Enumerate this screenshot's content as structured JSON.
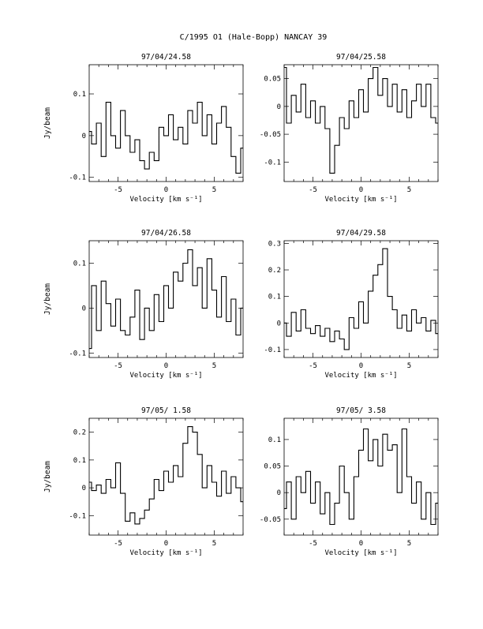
{
  "page": {
    "title": "C/1995 O1 (Hale-Bopp)   NANCAY    39"
  },
  "chart_data": [
    {
      "type": "line",
      "title": "97/04/24.58",
      "xlabel": "Velocity [km s⁻¹]",
      "ylabel": "Jy/beam",
      "xlim": [
        -8,
        8
      ],
      "ylim": [
        -0.11,
        0.17
      ],
      "xticks": [
        -5,
        0,
        5
      ],
      "yticks": [
        -0.1,
        0,
        0.1
      ],
      "ytick_labels": [
        "-0.1",
        "0",
        "0.1"
      ],
      "series": [
        {
          "x": [
            -8,
            -7.5,
            -7,
            -6.5,
            -6,
            -5.5,
            -5,
            -4.5,
            -4,
            -3.5,
            -3,
            -2.5,
            -2,
            -1.5,
            -1,
            -0.5,
            0,
            0.5,
            1,
            1.5,
            2,
            2.5,
            3,
            3.5,
            4,
            4.5,
            5,
            5.5,
            6,
            6.5,
            7,
            7.5,
            8
          ],
          "y": [
            0.01,
            -0.02,
            0.03,
            -0.05,
            0.08,
            0.0,
            -0.03,
            0.06,
            0.0,
            -0.04,
            -0.01,
            -0.06,
            -0.08,
            -0.04,
            -0.06,
            0.02,
            0.0,
            0.05,
            -0.01,
            0.02,
            -0.02,
            0.06,
            0.03,
            0.08,
            0.0,
            0.05,
            -0.02,
            0.03,
            0.07,
            0.02,
            -0.05,
            -0.09,
            -0.03
          ]
        }
      ]
    },
    {
      "type": "line",
      "title": "97/04/25.58",
      "xlabel": "Velocity [km s⁻¹]",
      "ylabel": "",
      "xlim": [
        -8,
        8
      ],
      "ylim": [
        -0.135,
        0.075
      ],
      "xticks": [
        -5,
        0,
        5
      ],
      "yticks": [
        -0.1,
        -0.05,
        0,
        0.05
      ],
      "ytick_labels": [
        "-0.1",
        "-0.05",
        "0",
        "0.05"
      ],
      "series": [
        {
          "x": [
            -8,
            -7.5,
            -7,
            -6.5,
            -6,
            -5.5,
            -5,
            -4.5,
            -4,
            -3.5,
            -3,
            -2.5,
            -2,
            -1.5,
            -1,
            -0.5,
            0,
            0.5,
            1,
            1.5,
            2,
            2.5,
            3,
            3.5,
            4,
            4.5,
            5,
            5.5,
            6,
            6.5,
            7,
            7.5,
            8
          ],
          "y": [
            0.07,
            -0.03,
            0.02,
            -0.01,
            0.04,
            -0.02,
            0.01,
            -0.03,
            0.0,
            -0.04,
            -0.12,
            -0.07,
            -0.02,
            -0.04,
            0.01,
            -0.02,
            0.03,
            -0.01,
            0.05,
            0.07,
            0.02,
            0.05,
            0.0,
            0.04,
            -0.01,
            0.03,
            -0.02,
            0.01,
            0.04,
            0.0,
            0.04,
            -0.02,
            -0.03
          ]
        }
      ]
    },
    {
      "type": "line",
      "title": "97/04/26.58",
      "xlabel": "Velocity [km s⁻¹]",
      "ylabel": "Jy/beam",
      "xlim": [
        -8,
        8
      ],
      "ylim": [
        -0.11,
        0.15
      ],
      "xticks": [
        -5,
        0,
        5
      ],
      "yticks": [
        -0.1,
        0,
        0.1
      ],
      "ytick_labels": [
        "-0.1",
        "0",
        "0.1"
      ],
      "series": [
        {
          "x": [
            -8,
            -7.5,
            -7,
            -6.5,
            -6,
            -5.5,
            -5,
            -4.5,
            -4,
            -3.5,
            -3,
            -2.5,
            -2,
            -1.5,
            -1,
            -0.5,
            0,
            0.5,
            1,
            1.5,
            2,
            2.5,
            3,
            3.5,
            4,
            4.5,
            5,
            5.5,
            6,
            6.5,
            7,
            7.5,
            8
          ],
          "y": [
            -0.09,
            0.05,
            -0.05,
            0.06,
            0.01,
            -0.04,
            0.02,
            -0.05,
            -0.06,
            -0.02,
            0.04,
            -0.07,
            0.0,
            -0.05,
            0.03,
            -0.03,
            0.05,
            0.0,
            0.08,
            0.06,
            0.1,
            0.13,
            0.05,
            0.09,
            0.0,
            0.11,
            0.04,
            -0.02,
            0.07,
            -0.03,
            0.02,
            -0.06,
            0.0
          ]
        }
      ]
    },
    {
      "type": "line",
      "title": "97/04/29.58",
      "xlabel": "Velocity [km s⁻¹]",
      "ylabel": "",
      "xlim": [
        -8,
        8
      ],
      "ylim": [
        -0.13,
        0.31
      ],
      "xticks": [
        -5,
        0,
        5
      ],
      "yticks": [
        -0.1,
        0,
        0.1,
        0.2,
        0.3
      ],
      "ytick_labels": [
        "-0.1",
        "0",
        "0.1",
        "0.2",
        "0.3"
      ],
      "series": [
        {
          "x": [
            -8,
            -7.5,
            -7,
            -6.5,
            -6,
            -5.5,
            -5,
            -4.5,
            -4,
            -3.5,
            -3,
            -2.5,
            -2,
            -1.5,
            -1,
            -0.5,
            0,
            0.5,
            1,
            1.5,
            2,
            2.5,
            3,
            3.5,
            4,
            4.5,
            5,
            5.5,
            6,
            6.5,
            7,
            7.5,
            8
          ],
          "y": [
            0.0,
            -0.05,
            0.04,
            -0.03,
            0.05,
            -0.02,
            -0.04,
            -0.01,
            -0.05,
            -0.02,
            -0.07,
            -0.03,
            -0.06,
            -0.1,
            0.02,
            -0.02,
            0.08,
            0.0,
            0.12,
            0.18,
            0.22,
            0.28,
            0.1,
            0.05,
            -0.02,
            0.03,
            -0.03,
            0.05,
            0.0,
            0.02,
            -0.03,
            0.01,
            -0.04
          ]
        }
      ]
    },
    {
      "type": "line",
      "title": "97/05/ 1.58",
      "xlabel": "Velocity [km s⁻¹]",
      "ylabel": "Jy/beam",
      "xlim": [
        -8,
        8
      ],
      "ylim": [
        -0.17,
        0.25
      ],
      "xticks": [
        -5,
        0,
        5
      ],
      "yticks": [
        -0.1,
        0,
        0.1,
        0.2
      ],
      "ytick_labels": [
        "-0.1",
        "0",
        "0.1",
        "0.2"
      ],
      "series": [
        {
          "x": [
            -8,
            -7.5,
            -7,
            -6.5,
            -6,
            -5.5,
            -5,
            -4.5,
            -4,
            -3.5,
            -3,
            -2.5,
            -2,
            -1.5,
            -1,
            -0.5,
            0,
            0.5,
            1,
            1.5,
            2,
            2.5,
            3,
            3.5,
            4,
            4.5,
            5,
            5.5,
            6,
            6.5,
            7,
            7.5,
            8
          ],
          "y": [
            0.02,
            -0.01,
            0.01,
            -0.02,
            0.03,
            0.0,
            0.09,
            -0.02,
            -0.12,
            -0.09,
            -0.13,
            -0.11,
            -0.08,
            -0.04,
            0.03,
            -0.01,
            0.06,
            0.02,
            0.08,
            0.04,
            0.16,
            0.22,
            0.2,
            0.12,
            0.0,
            0.08,
            0.02,
            -0.03,
            0.06,
            -0.02,
            0.04,
            0.0,
            -0.05
          ]
        }
      ]
    },
    {
      "type": "line",
      "title": "97/05/ 3.58",
      "xlabel": "Velocity [km s⁻¹]",
      "ylabel": "",
      "xlim": [
        -8,
        8
      ],
      "ylim": [
        -0.08,
        0.14
      ],
      "xticks": [
        -5,
        0,
        5
      ],
      "yticks": [
        -0.05,
        0,
        0.05,
        0.1
      ],
      "ytick_labels": [
        "-0.05",
        "0",
        "0.05",
        "0.1"
      ],
      "series": [
        {
          "x": [
            -8,
            -7.5,
            -7,
            -6.5,
            -6,
            -5.5,
            -5,
            -4.5,
            -4,
            -3.5,
            -3,
            -2.5,
            -2,
            -1.5,
            -1,
            -0.5,
            0,
            0.5,
            1,
            1.5,
            2,
            2.5,
            3,
            3.5,
            4,
            4.5,
            5,
            5.5,
            6,
            6.5,
            7,
            7.5,
            8
          ],
          "y": [
            -0.03,
            0.02,
            -0.05,
            0.03,
            0.0,
            0.04,
            -0.02,
            0.02,
            -0.04,
            0.0,
            -0.06,
            -0.02,
            0.05,
            0.0,
            -0.05,
            0.03,
            0.08,
            0.12,
            0.06,
            0.1,
            0.05,
            0.11,
            0.08,
            0.09,
            0.0,
            0.12,
            0.03,
            -0.02,
            0.02,
            -0.05,
            0.0,
            -0.06,
            -0.02
          ]
        }
      ]
    }
  ]
}
